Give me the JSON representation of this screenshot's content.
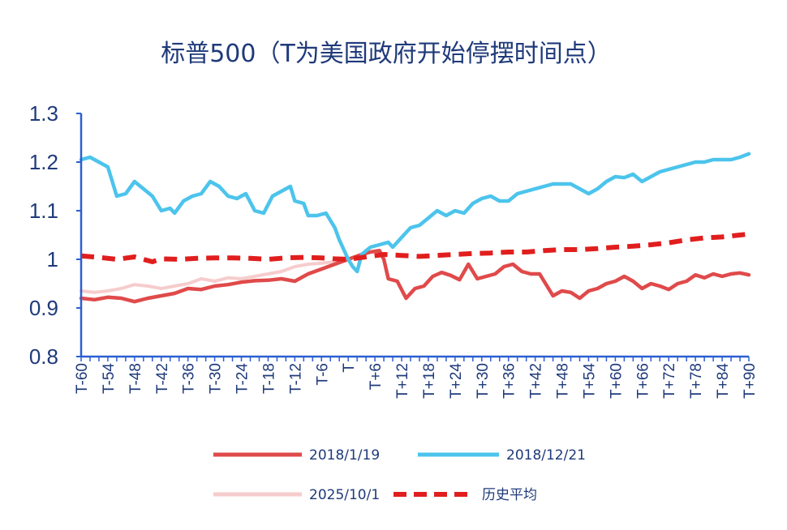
{
  "chart_data": {
    "type": "line",
    "title": "标普500（T为美国政府开始停摆时间点）",
    "xlabel": "",
    "ylabel": "",
    "ylim": [
      0.8,
      1.3
    ],
    "yticks": [
      "1.3",
      "1.2",
      "1.1",
      "1",
      "0.9",
      "0.8"
    ],
    "xlim": [
      -60,
      90
    ],
    "x_tick_labels": [
      "T-60",
      "T-54",
      "T-48",
      "T-42",
      "T-36",
      "T-30",
      "T-24",
      "T-18",
      "T-12",
      "T-6",
      "T",
      "T+6",
      "T+12",
      "T+18",
      "T+24",
      "T+30",
      "T+36",
      "T+42",
      "T+48",
      "T+54",
      "T+60",
      "T+66",
      "T+72",
      "T+78",
      "T+84",
      "T+90"
    ],
    "x_tick_values": [
      -60,
      -54,
      -48,
      -42,
      -36,
      -30,
      -24,
      -18,
      -12,
      -6,
      0,
      6,
      12,
      18,
      24,
      30,
      36,
      42,
      48,
      54,
      60,
      66,
      72,
      78,
      84,
      90
    ],
    "grid": false,
    "legend_position": "bottom",
    "series": [
      {
        "name": "2018/1/19",
        "color": "#e04a4a",
        "style": "solid",
        "points": [
          [
            -60,
            0.92
          ],
          [
            -57,
            0.917
          ],
          [
            -54,
            0.922
          ],
          [
            -51,
            0.92
          ],
          [
            -48,
            0.913
          ],
          [
            -45,
            0.92
          ],
          [
            -42,
            0.925
          ],
          [
            -39,
            0.93
          ],
          [
            -36,
            0.94
          ],
          [
            -33,
            0.938
          ],
          [
            -30,
            0.945
          ],
          [
            -27,
            0.948
          ],
          [
            -24,
            0.953
          ],
          [
            -21,
            0.956
          ],
          [
            -18,
            0.957
          ],
          [
            -15,
            0.96
          ],
          [
            -12,
            0.955
          ],
          [
            -9,
            0.97
          ],
          [
            -6,
            0.98
          ],
          [
            -3,
            0.99
          ],
          [
            0,
            1.0
          ],
          [
            3,
            1.01
          ],
          [
            5,
            1.015
          ],
          [
            7,
            1.018
          ],
          [
            8,
            1.0
          ],
          [
            9,
            0.96
          ],
          [
            11,
            0.955
          ],
          [
            13,
            0.92
          ],
          [
            15,
            0.94
          ],
          [
            17,
            0.945
          ],
          [
            19,
            0.965
          ],
          [
            21,
            0.973
          ],
          [
            23,
            0.967
          ],
          [
            25,
            0.958
          ],
          [
            27,
            0.99
          ],
          [
            29,
            0.96
          ],
          [
            31,
            0.965
          ],
          [
            33,
            0.97
          ],
          [
            35,
            0.985
          ],
          [
            37,
            0.99
          ],
          [
            39,
            0.975
          ],
          [
            41,
            0.97
          ],
          [
            43,
            0.97
          ],
          [
            45,
            0.94
          ],
          [
            46,
            0.925
          ],
          [
            48,
            0.935
          ],
          [
            50,
            0.932
          ],
          [
            52,
            0.92
          ],
          [
            54,
            0.935
          ],
          [
            56,
            0.94
          ],
          [
            58,
            0.95
          ],
          [
            60,
            0.955
          ],
          [
            62,
            0.965
          ],
          [
            64,
            0.955
          ],
          [
            66,
            0.94
          ],
          [
            68,
            0.95
          ],
          [
            70,
            0.945
          ],
          [
            72,
            0.938
          ],
          [
            74,
            0.95
          ],
          [
            76,
            0.955
          ],
          [
            78,
            0.968
          ],
          [
            80,
            0.962
          ],
          [
            82,
            0.97
          ],
          [
            84,
            0.965
          ],
          [
            86,
            0.97
          ],
          [
            88,
            0.972
          ],
          [
            90,
            0.968
          ]
        ]
      },
      {
        "name": "2018/12/21",
        "color": "#4cc4ec",
        "style": "solid",
        "points": [
          [
            -60,
            1.205
          ],
          [
            -58,
            1.21
          ],
          [
            -56,
            1.2
          ],
          [
            -54,
            1.19
          ],
          [
            -53,
            1.16
          ],
          [
            -52,
            1.13
          ],
          [
            -50,
            1.135
          ],
          [
            -48,
            1.16
          ],
          [
            -46,
            1.145
          ],
          [
            -44,
            1.13
          ],
          [
            -42,
            1.1
          ],
          [
            -40,
            1.105
          ],
          [
            -39,
            1.095
          ],
          [
            -37,
            1.12
          ],
          [
            -35,
            1.13
          ],
          [
            -33,
            1.135
          ],
          [
            -31,
            1.16
          ],
          [
            -29,
            1.15
          ],
          [
            -27,
            1.13
          ],
          [
            -25,
            1.125
          ],
          [
            -23,
            1.135
          ],
          [
            -21,
            1.1
          ],
          [
            -19,
            1.095
          ],
          [
            -17,
            1.13
          ],
          [
            -15,
            1.14
          ],
          [
            -13,
            1.15
          ],
          [
            -12,
            1.12
          ],
          [
            -10,
            1.115
          ],
          [
            -9,
            1.09
          ],
          [
            -7,
            1.09
          ],
          [
            -5,
            1.095
          ],
          [
            -3,
            1.065
          ],
          [
            -2,
            1.04
          ],
          [
            0,
            1.0
          ],
          [
            1,
            0.985
          ],
          [
            2,
            0.975
          ],
          [
            3,
            1.01
          ],
          [
            5,
            1.025
          ],
          [
            7,
            1.03
          ],
          [
            9,
            1.035
          ],
          [
            10,
            1.025
          ],
          [
            12,
            1.045
          ],
          [
            14,
            1.065
          ],
          [
            16,
            1.07
          ],
          [
            18,
            1.085
          ],
          [
            20,
            1.1
          ],
          [
            22,
            1.09
          ],
          [
            24,
            1.1
          ],
          [
            26,
            1.095
          ],
          [
            28,
            1.115
          ],
          [
            30,
            1.125
          ],
          [
            32,
            1.13
          ],
          [
            34,
            1.12
          ],
          [
            36,
            1.12
          ],
          [
            38,
            1.135
          ],
          [
            40,
            1.14
          ],
          [
            42,
            1.145
          ],
          [
            44,
            1.15
          ],
          [
            46,
            1.155
          ],
          [
            48,
            1.155
          ],
          [
            50,
            1.155
          ],
          [
            52,
            1.145
          ],
          [
            54,
            1.135
          ],
          [
            56,
            1.145
          ],
          [
            58,
            1.16
          ],
          [
            60,
            1.17
          ],
          [
            62,
            1.168
          ],
          [
            64,
            1.175
          ],
          [
            66,
            1.16
          ],
          [
            68,
            1.17
          ],
          [
            70,
            1.18
          ],
          [
            72,
            1.185
          ],
          [
            74,
            1.19
          ],
          [
            76,
            1.195
          ],
          [
            78,
            1.2
          ],
          [
            80,
            1.2
          ],
          [
            82,
            1.205
          ],
          [
            84,
            1.205
          ],
          [
            86,
            1.205
          ],
          [
            88,
            1.21
          ],
          [
            90,
            1.217
          ]
        ]
      },
      {
        "name": "2025/10/1",
        "color": "#f6cccc",
        "style": "solid",
        "points": [
          [
            -60,
            0.935
          ],
          [
            -57,
            0.932
          ],
          [
            -54,
            0.935
          ],
          [
            -51,
            0.94
          ],
          [
            -48,
            0.948
          ],
          [
            -45,
            0.945
          ],
          [
            -42,
            0.94
          ],
          [
            -39,
            0.945
          ],
          [
            -36,
            0.95
          ],
          [
            -33,
            0.96
          ],
          [
            -30,
            0.955
          ],
          [
            -27,
            0.962
          ],
          [
            -24,
            0.96
          ],
          [
            -21,
            0.965
          ],
          [
            -18,
            0.97
          ],
          [
            -15,
            0.975
          ],
          [
            -12,
            0.985
          ],
          [
            -9,
            0.99
          ],
          [
            -6,
            0.992
          ],
          [
            -3,
            0.995
          ],
          [
            0,
            1.0
          ]
        ]
      },
      {
        "name": "历史平均",
        "color": "#e11e1e",
        "style": "dashed",
        "points": [
          [
            -60,
            1.007
          ],
          [
            -56,
            1.004
          ],
          [
            -52,
            1.0
          ],
          [
            -48,
            1.005
          ],
          [
            -46,
            1.0
          ],
          [
            -44,
            0.995
          ],
          [
            -42,
            1.001
          ],
          [
            -38,
            1.0
          ],
          [
            -34,
            1.002
          ],
          [
            -30,
            1.003
          ],
          [
            -26,
            1.003
          ],
          [
            -22,
            1.002
          ],
          [
            -18,
            1.0
          ],
          [
            -14,
            1.003
          ],
          [
            -10,
            1.004
          ],
          [
            -6,
            1.003
          ],
          [
            -3,
            1.001
          ],
          [
            0,
            1.0
          ],
          [
            4,
            1.005
          ],
          [
            8,
            1.01
          ],
          [
            12,
            1.008
          ],
          [
            16,
            1.006
          ],
          [
            20,
            1.008
          ],
          [
            24,
            1.01
          ],
          [
            28,
            1.012
          ],
          [
            32,
            1.013
          ],
          [
            36,
            1.015
          ],
          [
            40,
            1.015
          ],
          [
            44,
            1.018
          ],
          [
            48,
            1.02
          ],
          [
            52,
            1.02
          ],
          [
            56,
            1.022
          ],
          [
            60,
            1.025
          ],
          [
            64,
            1.027
          ],
          [
            68,
            1.03
          ],
          [
            72,
            1.034
          ],
          [
            76,
            1.04
          ],
          [
            80,
            1.044
          ],
          [
            84,
            1.046
          ],
          [
            88,
            1.05
          ],
          [
            90,
            1.052
          ]
        ]
      }
    ]
  }
}
